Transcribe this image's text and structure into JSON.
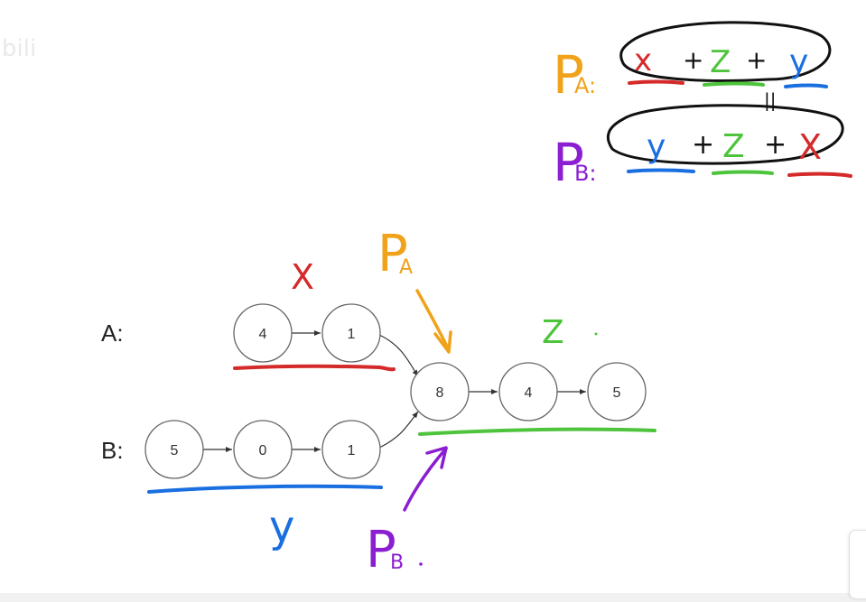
{
  "colors": {
    "x": "#d42a2a",
    "y": "#1a6fe0",
    "z": "#4ec43c",
    "pa": "#f0a21a",
    "pb": "#8a1ed0",
    "node_stroke": "#666666",
    "text": "#222222"
  },
  "list_a": {
    "label": "A:",
    "nodes": [
      "4",
      "1"
    ]
  },
  "list_b": {
    "label": "B:",
    "nodes": [
      "5",
      "0",
      "1"
    ]
  },
  "shared": {
    "nodes": [
      "8",
      "4",
      "5"
    ]
  },
  "annotations": {
    "x_label": "X",
    "y_label": "y",
    "z_label": "Z",
    "pa_main": "P",
    "pa_sub": "A",
    "pb_main": "P",
    "pb_sub": "B"
  },
  "equation": {
    "pa_main": "P",
    "pa_sub": "A:",
    "pb_main": "P",
    "pb_sub": "B:",
    "row_a": [
      "x",
      "+",
      "Z",
      "+",
      "y"
    ],
    "row_b": [
      "y",
      "+",
      "Z",
      "+",
      "X"
    ],
    "equals": "||"
  },
  "watermark": "bili"
}
